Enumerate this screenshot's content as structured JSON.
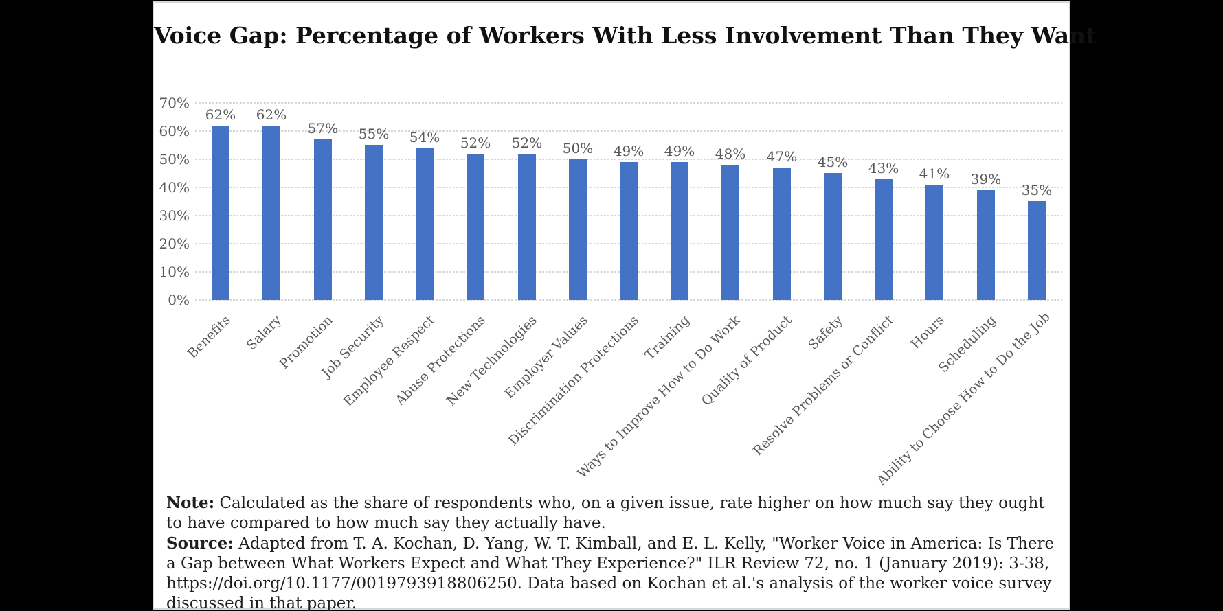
{
  "chart_data": {
    "type": "bar",
    "title": "Voice Gap: Percentage of Workers With Less Involvement Than They Want",
    "categories": [
      "Benefits",
      "Salary",
      "Promotion",
      "Job Security",
      "Employee Respect",
      "Abuse Protections",
      "New Technologies",
      "Employer Values",
      "Discrimination Protections",
      "Training",
      "Ways to Improve How to Do Work",
      "Quality of Product",
      "Safety",
      "Resolve Problems or Conflict",
      "Hours",
      "Scheduling",
      "Ability to Choose How to Do the Job"
    ],
    "values": [
      62,
      62,
      57,
      55,
      54,
      52,
      52,
      50,
      49,
      49,
      48,
      47,
      45,
      43,
      41,
      39,
      35
    ],
    "bar_labels": [
      "62%",
      "62%",
      "57%",
      "55%",
      "54%",
      "52%",
      "52%",
      "50%",
      "49%",
      "49%",
      "48%",
      "47%",
      "45%",
      "43%",
      "41%",
      "39%",
      "35%"
    ],
    "y_ticks": [
      "70%",
      "60%",
      "50%",
      "40%",
      "30%",
      "20%",
      "10%",
      "0%"
    ],
    "ylim": [
      0,
      70
    ],
    "xlabel": "",
    "ylabel": "",
    "legend": "none",
    "grid": "horizontal-dashed",
    "bar_color": "#4472c4",
    "gridline_color": "#d8d8d8",
    "tick_label_color": "#595959"
  },
  "notes": {
    "note_label": "Note:",
    "note_text": "Calculated as the share of respondents who, on a given issue, rate higher on how much say they ought to have compared to how much say they actually have.",
    "source_label": "Source:",
    "source_text": "Adapted from T. A. Kochan, D. Yang, W. T. Kimball, and E. L. Kelly, \"Worker Voice in America: Is There a Gap between What Workers Expect and What They Experience?\" ILR Review 72, no. 1 (January 2019): 3-38, https://doi.org/10.1177/0019793918806250. Data based on Kochan et al.'s analysis of the worker voice survey discussed in that paper."
  }
}
